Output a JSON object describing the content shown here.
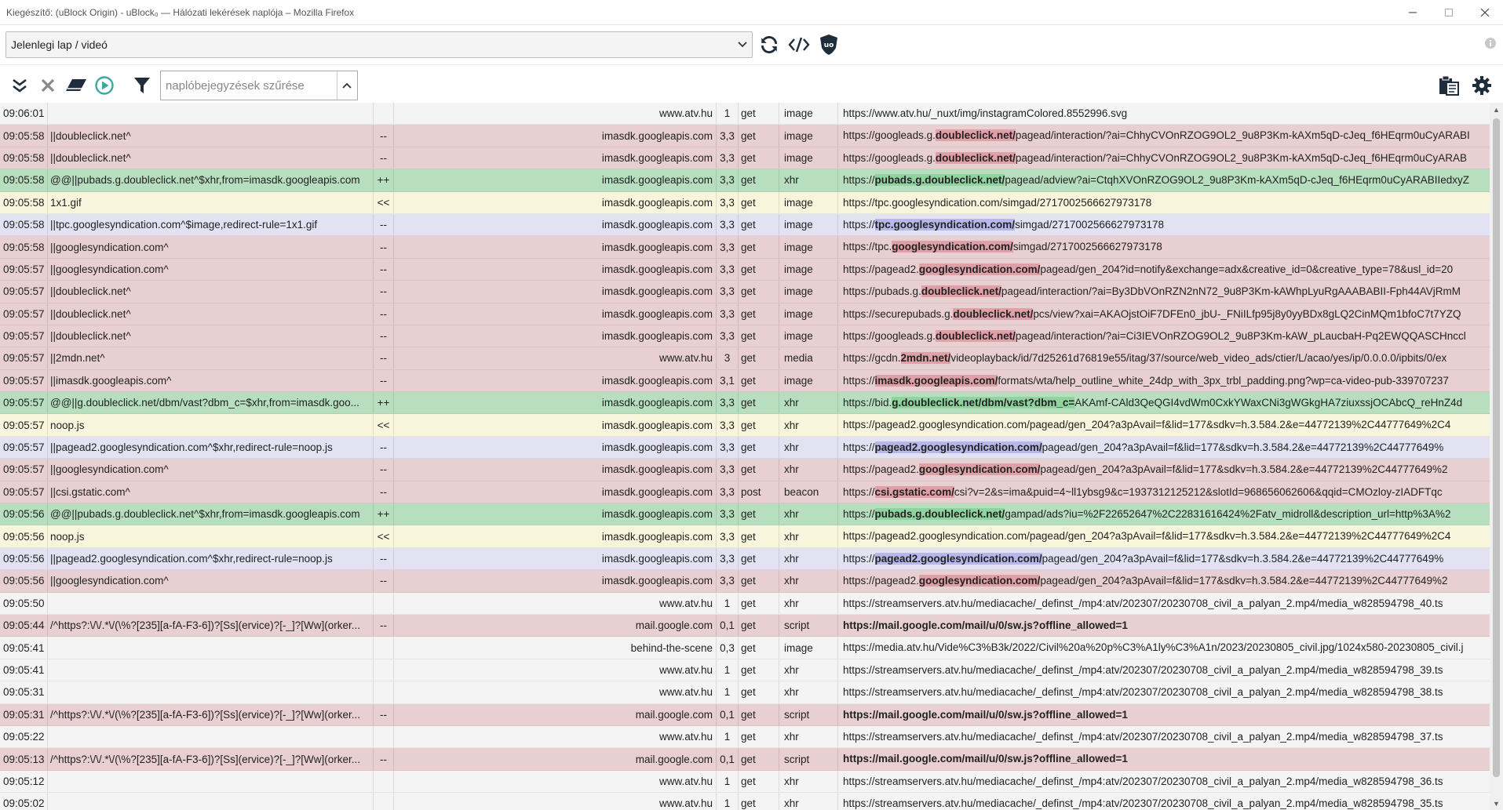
{
  "window": {
    "title": "Kiegészítő: (uBlock Origin) - uBlock₀ — Hálózati lekérések naplója – Mozilla Firefox"
  },
  "toolbar": {
    "tab_select_value": "Jelenlegi lap / videó",
    "filter_placeholder": "naplóbejegyzések szűrése"
  },
  "icons": {
    "reload": "reload-icon",
    "dom": "code-icon",
    "ublock": "ublock-shield-icon",
    "info": "info-icon",
    "expand": "double-chevron-down-icon",
    "clear": "close-icon",
    "eraser": "eraser-icon",
    "play": "play-circle-icon",
    "filter": "funnel-icon",
    "export": "clipboard-export-icon",
    "settings": "gear-icon"
  },
  "colors": {
    "blocked": "#e8cfd2",
    "allowed": "#b7dfbf",
    "redirected": "#f7f5dc",
    "noop": "#e2e2f2",
    "neutral": "#f4f4f4"
  },
  "rows": [
    {
      "time": "09:06:01",
      "filter": "",
      "result": "",
      "context": "www.atv.hu",
      "party": "1",
      "method": "get",
      "type": "image",
      "url_pre": "https://www.atv.hu/_nuxt/img/instagramColored.8552996.svg",
      "url_hl": "",
      "url_post": "",
      "status": "none"
    },
    {
      "time": "09:05:58",
      "filter": "||doubleclick.net^",
      "result": "--",
      "context": "imasdk.googleapis.com",
      "party": "3,3",
      "method": "get",
      "type": "image",
      "url_pre": "https://googleads.g.",
      "url_hl": "doubleclick.net/",
      "url_post": "pagead/interaction/?ai=ChhyCVOnRZOG9OL2_9u8P3Km-kAXm5qD-cJeq_f6HEqrm0uCyARABI",
      "status": "blocked"
    },
    {
      "time": "09:05:58",
      "filter": "||doubleclick.net^",
      "result": "--",
      "context": "imasdk.googleapis.com",
      "party": "3,3",
      "method": "get",
      "type": "image",
      "url_pre": "https://googleads.g.",
      "url_hl": "doubleclick.net/",
      "url_post": "pagead/interaction/?ai=ChhyCVOnRZOG9OL2_9u8P3Km-kAXm5qD-cJeq_f6HEqrm0uCyARAB",
      "status": "blocked"
    },
    {
      "time": "09:05:58",
      "filter": "@@||pubads.g.doubleclick.net^$xhr,from=imasdk.googleapis.com",
      "result": "++",
      "context": "imasdk.googleapis.com",
      "party": "3,3",
      "method": "get",
      "type": "xhr",
      "url_pre": "https://",
      "url_hl": "pubads.g.doubleclick.net/",
      "url_post": "pagead/adview?ai=CtqhXVOnRZOG9OL2_9u8P3Km-kAXm5qD-cJeq_f6HEqrm0uCyARABIIedxyZ",
      "status": "allowed"
    },
    {
      "time": "09:05:58",
      "filter": "1x1.gif",
      "result": "<<",
      "context": "imasdk.googleapis.com",
      "party": "3,3",
      "method": "get",
      "type": "image",
      "url_pre": "https://tpc.googlesyndication.com/simgad/2717002566627973178",
      "url_hl": "",
      "url_post": "",
      "status": "redirect"
    },
    {
      "time": "09:05:58",
      "filter": "||tpc.googlesyndication.com^$image,redirect-rule=1x1.gif",
      "result": "--",
      "context": "imasdk.googleapis.com",
      "party": "3,3",
      "method": "get",
      "type": "image",
      "url_pre": "https://",
      "url_hl": "tpc.googlesyndication.com/",
      "url_post": "simgad/2717002566627973178",
      "status": "noop"
    },
    {
      "time": "09:05:58",
      "filter": "||googlesyndication.com^",
      "result": "--",
      "context": "imasdk.googleapis.com",
      "party": "3,3",
      "method": "get",
      "type": "image",
      "url_pre": "https://tpc.",
      "url_hl": "googlesyndication.com/",
      "url_post": "simgad/2717002566627973178",
      "status": "blocked"
    },
    {
      "time": "09:05:57",
      "filter": "||googlesyndication.com^",
      "result": "--",
      "context": "imasdk.googleapis.com",
      "party": "3,3",
      "method": "get",
      "type": "image",
      "url_pre": "https://pagead2.",
      "url_hl": "googlesyndication.com/",
      "url_post": "pagead/gen_204?id=notify&exchange=adx&creative_id=0&creative_type=78&usl_id=20",
      "status": "blocked"
    },
    {
      "time": "09:05:57",
      "filter": "||doubleclick.net^",
      "result": "--",
      "context": "imasdk.googleapis.com",
      "party": "3,3",
      "method": "get",
      "type": "image",
      "url_pre": "https://pubads.g.",
      "url_hl": "doubleclick.net/",
      "url_post": "pagead/interaction/?ai=By3DbVOnRZN2nN72_9u8P3Km-kAWhpLyuRgAAABABII-Fph44AVjRmM",
      "status": "blocked"
    },
    {
      "time": "09:05:57",
      "filter": "||doubleclick.net^",
      "result": "--",
      "context": "imasdk.googleapis.com",
      "party": "3,3",
      "method": "get",
      "type": "image",
      "url_pre": "https://securepubads.g.",
      "url_hl": "doubleclick.net/",
      "url_post": "pcs/view?xai=AKAOjstOiF7DFEn0_jbU-_FNiILfp95j8y0yyBDx8gLQ2CinMQm1bfoC7t7YZQ",
      "status": "blocked"
    },
    {
      "time": "09:05:57",
      "filter": "||doubleclick.net^",
      "result": "--",
      "context": "imasdk.googleapis.com",
      "party": "3,3",
      "method": "get",
      "type": "image",
      "url_pre": "https://googleads.g.",
      "url_hl": "doubleclick.net/",
      "url_post": "pagead/interaction/?ai=Ci3IEVOnRZOG9OL2_9u8P3Km-kAW_pLaucbaH-Pq2EWQQASCHnccl",
      "status": "blocked"
    },
    {
      "time": "09:05:57",
      "filter": "||2mdn.net^",
      "result": "--",
      "context": "www.atv.hu",
      "party": "3",
      "method": "get",
      "type": "media",
      "url_pre": "https://gcdn.",
      "url_hl": "2mdn.net/",
      "url_post": "videoplayback/id/7d25261d76819e55/itag/37/source/web_video_ads/ctier/L/acao/yes/ip/0.0.0.0/ipbits/0/ex",
      "status": "blocked"
    },
    {
      "time": "09:05:57",
      "filter": "||imasdk.googleapis.com^",
      "result": "--",
      "context": "imasdk.googleapis.com",
      "party": "3,1",
      "method": "get",
      "type": "image",
      "url_pre": "https://",
      "url_hl": "imasdk.googleapis.com/",
      "url_post": "formats/wta/help_outline_white_24dp_with_3px_trbl_padding.png?wp=ca-video-pub-339707237",
      "status": "blocked"
    },
    {
      "time": "09:05:57",
      "filter": "@@||g.doubleclick.net/dbm/vast?dbm_c=$xhr,from=imasdk.goo...",
      "result": "++",
      "context": "imasdk.googleapis.com",
      "party": "3,3",
      "method": "get",
      "type": "xhr",
      "url_pre": "https://bid.",
      "url_hl": "g.doubleclick.net/dbm/vast?dbm_c=",
      "url_post": "AKAmf-CAld3QeQGI4vdWm0CxkYWaxCNi3gWGkgHA7ziuxssjOCAbcQ_reHnZ4d",
      "status": "allowed"
    },
    {
      "time": "09:05:57",
      "filter": "noop.js",
      "result": "<<",
      "context": "imasdk.googleapis.com",
      "party": "3,3",
      "method": "get",
      "type": "xhr",
      "url_pre": "https://pagead2.googlesyndication.com/pagead/gen_204?a3pAvail=f&lid=177&sdkv=h.3.584.2&e=44772139%2C44777649%2C4",
      "url_hl": "",
      "url_post": "",
      "status": "redirect"
    },
    {
      "time": "09:05:57",
      "filter": "||pagead2.googlesyndication.com^$xhr,redirect-rule=noop.js",
      "result": "--",
      "context": "imasdk.googleapis.com",
      "party": "3,3",
      "method": "get",
      "type": "xhr",
      "url_pre": "https://",
      "url_hl": "pagead2.googlesyndication.com/",
      "url_post": "pagead/gen_204?a3pAvail=f&lid=177&sdkv=h.3.584.2&e=44772139%2C44777649%",
      "status": "noop"
    },
    {
      "time": "09:05:57",
      "filter": "||googlesyndication.com^",
      "result": "--",
      "context": "imasdk.googleapis.com",
      "party": "3,3",
      "method": "get",
      "type": "xhr",
      "url_pre": "https://pagead2.",
      "url_hl": "googlesyndication.com/",
      "url_post": "pagead/gen_204?a3pAvail=f&lid=177&sdkv=h.3.584.2&e=44772139%2C44777649%2",
      "status": "blocked"
    },
    {
      "time": "09:05:57",
      "filter": "||csi.gstatic.com^",
      "result": "--",
      "context": "imasdk.googleapis.com",
      "party": "3,3",
      "method": "post",
      "type": "beacon",
      "url_pre": "https://",
      "url_hl": "csi.gstatic.com/",
      "url_post": "csi?v=2&s=ima&puid=4~ll1ybsg9&c=1937312125212&slotId=968656062606&qqid=CMOzloy-zIADFTqc",
      "status": "blocked"
    },
    {
      "time": "09:05:56",
      "filter": "@@||pubads.g.doubleclick.net^$xhr,from=imasdk.googleapis.com",
      "result": "++",
      "context": "imasdk.googleapis.com",
      "party": "3,3",
      "method": "get",
      "type": "xhr",
      "url_pre": "https://",
      "url_hl": "pubads.g.doubleclick.net/",
      "url_post": "gampad/ads?iu=%2F22652647%2C22831616424%2Fatv_midroll&description_url=http%3A%2",
      "status": "allowed"
    },
    {
      "time": "09:05:56",
      "filter": "noop.js",
      "result": "<<",
      "context": "imasdk.googleapis.com",
      "party": "3,3",
      "method": "get",
      "type": "xhr",
      "url_pre": "https://pagead2.googlesyndication.com/pagead/gen_204?a3pAvail=f&lid=177&sdkv=h.3.584.2&e=44772139%2C44777649%2C4",
      "url_hl": "",
      "url_post": "",
      "status": "redirect"
    },
    {
      "time": "09:05:56",
      "filter": "||pagead2.googlesyndication.com^$xhr,redirect-rule=noop.js",
      "result": "--",
      "context": "imasdk.googleapis.com",
      "party": "3,3",
      "method": "get",
      "type": "xhr",
      "url_pre": "https://",
      "url_hl": "pagead2.googlesyndication.com/",
      "url_post": "pagead/gen_204?a3pAvail=f&lid=177&sdkv=h.3.584.2&e=44772139%2C44777649%",
      "status": "noop"
    },
    {
      "time": "09:05:56",
      "filter": "||googlesyndication.com^",
      "result": "--",
      "context": "imasdk.googleapis.com",
      "party": "3,3",
      "method": "get",
      "type": "xhr",
      "url_pre": "https://pagead2.",
      "url_hl": "googlesyndication.com/",
      "url_post": "pagead/gen_204?a3pAvail=f&lid=177&sdkv=h.3.584.2&e=44772139%2C44777649%2",
      "status": "blocked"
    },
    {
      "time": "09:05:50",
      "filter": "",
      "result": "",
      "context": "www.atv.hu",
      "party": "1",
      "method": "get",
      "type": "xhr",
      "url_pre": "https://streamservers.atv.hu/mediacache/_definst_/mp4:atv/202307/20230708_civil_a_palyan_2.mp4/media_w828594798_40.ts",
      "url_hl": "",
      "url_post": "",
      "status": "none"
    },
    {
      "time": "09:05:44",
      "filter": "/^https?:\\/\\/.*\\/(\\%?[235][a-fA-F3-6])?[Ss](ervice)?[-_]?[Ww](orker...",
      "result": "--",
      "context": "mail.google.com",
      "party": "0,1",
      "method": "get",
      "type": "script",
      "url_pre": "https://mail.google.com/mail/u/0/sw.js?offline_allowed=1",
      "url_hl": "",
      "url_post": "",
      "status": "blocked full"
    },
    {
      "time": "09:05:41",
      "filter": "",
      "result": "",
      "context": "behind-the-scene",
      "party": "0,3",
      "method": "get",
      "type": "image",
      "url_pre": "https://media.atv.hu/Vide%C3%B3k/2022/Civil%20a%20p%C3%A1ly%C3%A1n/2023/20230805_civil.jpg/1024x580-20230805_civil.j",
      "url_hl": "",
      "url_post": "",
      "status": "none"
    },
    {
      "time": "09:05:41",
      "filter": "",
      "result": "",
      "context": "www.atv.hu",
      "party": "1",
      "method": "get",
      "type": "xhr",
      "url_pre": "https://streamservers.atv.hu/mediacache/_definst_/mp4:atv/202307/20230708_civil_a_palyan_2.mp4/media_w828594798_39.ts",
      "url_hl": "",
      "url_post": "",
      "status": "none"
    },
    {
      "time": "09:05:31",
      "filter": "",
      "result": "",
      "context": "www.atv.hu",
      "party": "1",
      "method": "get",
      "type": "xhr",
      "url_pre": "https://streamservers.atv.hu/mediacache/_definst_/mp4:atv/202307/20230708_civil_a_palyan_2.mp4/media_w828594798_38.ts",
      "url_hl": "",
      "url_post": "",
      "status": "none"
    },
    {
      "time": "09:05:31",
      "filter": "/^https?:\\/\\/.*\\/(\\%?[235][a-fA-F3-6])?[Ss](ervice)?[-_]?[Ww](orker...",
      "result": "--",
      "context": "mail.google.com",
      "party": "0,1",
      "method": "get",
      "type": "script",
      "url_pre": "https://mail.google.com/mail/u/0/sw.js?offline_allowed=1",
      "url_hl": "",
      "url_post": "",
      "status": "blocked full"
    },
    {
      "time": "09:05:22",
      "filter": "",
      "result": "",
      "context": "www.atv.hu",
      "party": "1",
      "method": "get",
      "type": "xhr",
      "url_pre": "https://streamservers.atv.hu/mediacache/_definst_/mp4:atv/202307/20230708_civil_a_palyan_2.mp4/media_w828594798_37.ts",
      "url_hl": "",
      "url_post": "",
      "status": "none"
    },
    {
      "time": "09:05:13",
      "filter": "/^https?:\\/\\/.*\\/(\\%?[235][a-fA-F3-6])?[Ss](ervice)?[-_]?[Ww](orker...",
      "result": "--",
      "context": "mail.google.com",
      "party": "0,1",
      "method": "get",
      "type": "script",
      "url_pre": "https://mail.google.com/mail/u/0/sw.js?offline_allowed=1",
      "url_hl": "",
      "url_post": "",
      "status": "blocked full"
    },
    {
      "time": "09:05:12",
      "filter": "",
      "result": "",
      "context": "www.atv.hu",
      "party": "1",
      "method": "get",
      "type": "xhr",
      "url_pre": "https://streamservers.atv.hu/mediacache/_definst_/mp4:atv/202307/20230708_civil_a_palyan_2.mp4/media_w828594798_36.ts",
      "url_hl": "",
      "url_post": "",
      "status": "none"
    },
    {
      "time": "09:05:02",
      "filter": "",
      "result": "",
      "context": "www.atv.hu",
      "party": "1",
      "method": "get",
      "type": "xhr",
      "url_pre": "https://streamservers.atv.hu/mediacache/_definst_/mp4:atv/202307/20230708_civil_a_palyan_2.mp4/media_w828594798_35.ts",
      "url_hl": "",
      "url_post": "",
      "status": "none"
    }
  ]
}
